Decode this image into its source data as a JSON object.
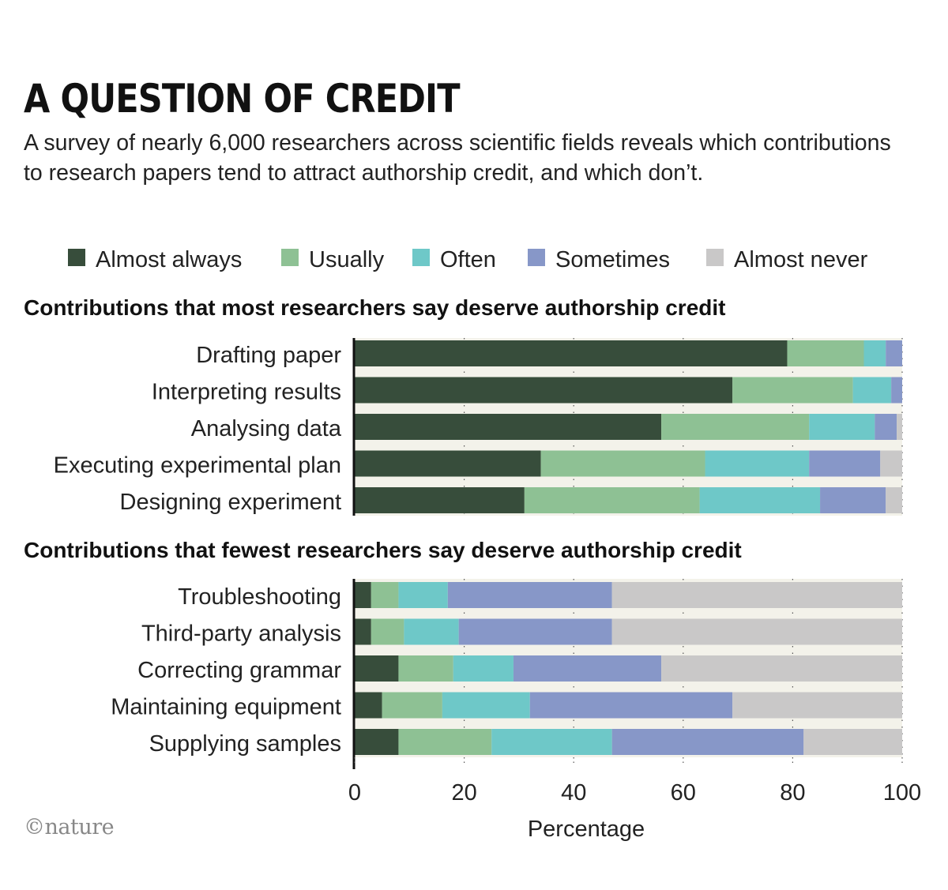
{
  "title": "A QUESTION OF CREDIT",
  "subtitle": "A survey of nearly 6,000 researchers across scientific fields reveals which contributions to research papers tend to attract authorship credit, and which don’t.",
  "logo": "©nature",
  "legend": [
    {
      "label": "Almost always",
      "color": "#374d3b"
    },
    {
      "label": "Usually",
      "color": "#8ec194"
    },
    {
      "label": "Often",
      "color": "#6ec8c8"
    },
    {
      "label": "Sometimes",
      "color": "#8797c8"
    },
    {
      "label": "Almost never",
      "color": "#c9c8c8"
    }
  ],
  "chart_data": [
    {
      "type": "bar",
      "orientation": "horizontal",
      "stacked": true,
      "title": "Contributions that most researchers say deserve authorship credit",
      "categories": [
        "Drafting paper",
        "Interpreting results",
        "Analysing data",
        "Executing experimental plan",
        "Designing experiment"
      ],
      "series": [
        {
          "name": "Almost always",
          "values": [
            79,
            69,
            56,
            34,
            31
          ]
        },
        {
          "name": "Usually",
          "values": [
            14,
            22,
            27,
            30,
            32
          ]
        },
        {
          "name": "Often",
          "values": [
            4,
            7,
            12,
            19,
            22
          ]
        },
        {
          "name": "Sometimes",
          "values": [
            3,
            2,
            4,
            13,
            12
          ]
        },
        {
          "name": "Almost never",
          "values": [
            0,
            0,
            1,
            4,
            3
          ]
        }
      ],
      "xlim": [
        0,
        100
      ]
    },
    {
      "type": "bar",
      "orientation": "horizontal",
      "stacked": true,
      "title": "Contributions that fewest researchers say deserve authorship credit",
      "categories": [
        "Troubleshooting",
        "Third-party analysis",
        "Correcting grammar",
        "Maintaining equipment",
        "Supplying samples"
      ],
      "series": [
        {
          "name": "Almost always",
          "values": [
            3,
            3,
            8,
            5,
            8
          ]
        },
        {
          "name": "Usually",
          "values": [
            5,
            6,
            10,
            11,
            17
          ]
        },
        {
          "name": "Often",
          "values": [
            9,
            10,
            11,
            16,
            22
          ]
        },
        {
          "name": "Sometimes",
          "values": [
            30,
            28,
            27,
            37,
            35
          ]
        },
        {
          "name": "Almost never",
          "values": [
            53,
            53,
            44,
            31,
            18
          ]
        }
      ],
      "xlim": [
        0,
        100
      ],
      "xticks": [
        0,
        20,
        40,
        60,
        80,
        100
      ],
      "xlabel": "Percentage"
    }
  ]
}
